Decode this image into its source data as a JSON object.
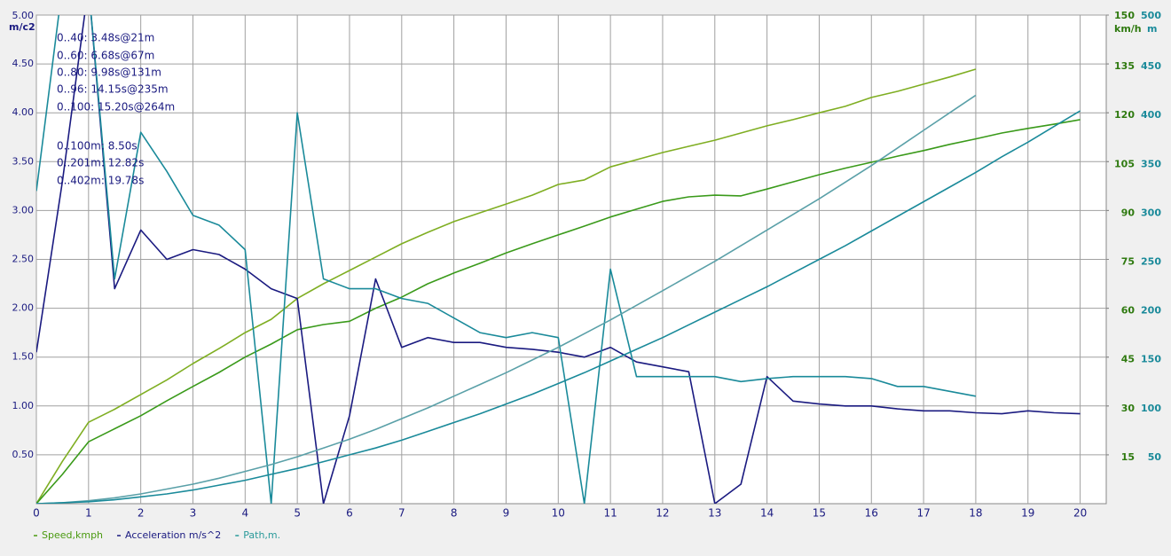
{
  "chart_data": {
    "type": "line",
    "y_label": "m/c2",
    "y2_label": "km/h",
    "y3_label": "m",
    "annotations": [
      "0..40: 3.48s@21m",
      "0..60: 6.68s@67m",
      "0..80: 9.98s@131m",
      "0..96: 14.15s@235m",
      "0..100: 15.20s@264m",
      "0..100m: 8.50s",
      "0..201m: 12.82s",
      "0..402m: 19.78s"
    ],
    "x": [
      0,
      0.5,
      1,
      1.5,
      2,
      2.5,
      3,
      3.5,
      4,
      4.5,
      5,
      5.5,
      6,
      6.5,
      7,
      7.5,
      8,
      8.5,
      9,
      9.5,
      10,
      10.5,
      11,
      11.5,
      12,
      12.5,
      13,
      13.5,
      14,
      14.5,
      15,
      15.5,
      16,
      16.5,
      17,
      17.5,
      18,
      18.5,
      19,
      19.5,
      20,
      20.5
    ],
    "xlim": [
      0,
      20.5
    ],
    "xticks": [
      0,
      1,
      2,
      3,
      4,
      5,
      6,
      7,
      8,
      9,
      10,
      11,
      12,
      13,
      14,
      15,
      16,
      17,
      18,
      19,
      20
    ],
    "ylim": [
      0,
      5
    ],
    "yticks": [
      {
        "value": 0.5,
        "label": "0.50"
      },
      {
        "value": 1,
        "label": "1.00"
      },
      {
        "value": 1.5,
        "label": "1.50"
      },
      {
        "value": 2,
        "label": "2.00"
      },
      {
        "value": 2.5,
        "label": "2.50"
      },
      {
        "value": 3,
        "label": "3.00"
      },
      {
        "value": 3.5,
        "label": "3.50"
      },
      {
        "value": 4,
        "label": "4.00"
      },
      {
        "value": 4.5,
        "label": "4.50"
      },
      {
        "value": 5,
        "label": "5.00"
      }
    ],
    "y2lim": [
      0,
      150
    ],
    "y2ticks": [
      15,
      30,
      45,
      60,
      75,
      90,
      105,
      120,
      135,
      150
    ],
    "y3lim": [
      0,
      500
    ],
    "y3ticks": [
      50,
      100,
      150,
      200,
      250,
      300,
      350,
      400,
      450,
      500
    ],
    "grid": true,
    "series": [
      {
        "name": "Speed,kmph",
        "color": "#4a9a10",
        "axis": "y2",
        "runs": [
          {
            "color": "#7fae22",
            "values": [
              0,
              13,
              25,
              29,
              33.5,
              38,
              43,
              47.6,
              52.5,
              56.6,
              63,
              67.5,
              71.6,
              75.7,
              79.8,
              83.3,
              86.6,
              89.3,
              92,
              94.7,
              98,
              99.4,
              103.4,
              105.6,
              107.8,
              109.7,
              111.6,
              113.8,
              116,
              117.9,
              120,
              122,
              124.7,
              126.6,
              128.8,
              131,
              133.4,
              null,
              null,
              null,
              null,
              null
            ]
          },
          {
            "color": "#3a9a1a",
            "values": [
              0,
              9,
              19,
              23,
              27,
              31.6,
              36,
              40.3,
              45,
              49,
              53.4,
              55,
              56,
              60,
              63.4,
              67.5,
              70.8,
              73.8,
              77,
              79.8,
              82.5,
              85.2,
              88,
              90.4,
              92.8,
              94.2,
              94.7,
              94.5,
              96.6,
              98.8,
              101,
              103,
              104.8,
              106.7,
              108.4,
              110.3,
              112,
              113.8,
              115.2,
              116.5,
              117.9,
              null
            ]
          }
        ]
      },
      {
        "name": "Acceleration m/s^2",
        "color": "#1a1a80",
        "axis": "y",
        "runs": [
          {
            "color": "#1a1a80",
            "values": [
              1.55,
              3.3,
              5.3,
              2.2,
              2.8,
              2.5,
              2.6,
              2.55,
              2.4,
              2.2,
              2.1,
              0,
              0.9,
              2.3,
              1.6,
              1.7,
              1.65,
              1.65,
              1.6,
              1.58,
              1.55,
              1.5,
              1.6,
              1.45,
              1.4,
              1.35,
              0,
              0.2,
              1.3,
              1.05,
              1.02,
              1,
              1,
              0.97,
              0.95,
              0.95,
              0.93,
              0.92,
              0.95,
              0.93,
              0.92,
              null
            ]
          },
          {
            "color": "#1a8a9a",
            "values": [
              3.2,
              5.3,
              5.3,
              2.3,
              3.8,
              3.4,
              2.95,
              2.85,
              2.6,
              0,
              4,
              2.3,
              2.2,
              2.2,
              2.1,
              2.05,
              1.9,
              1.75,
              1.7,
              1.75,
              1.7,
              0,
              2.4,
              1.3,
              1.3,
              1.3,
              1.3,
              1.25,
              1.28,
              1.3,
              1.3,
              1.3,
              1.28,
              1.2,
              1.2,
              1.15,
              1.1,
              null,
              null,
              null,
              null,
              null
            ]
          }
        ]
      },
      {
        "name": "Path,m.",
        "color": "#2a9a9a",
        "axis": "y3",
        "runs": [
          {
            "color": "#5aa0a8",
            "values": [
              0,
              1,
              3,
              6,
              10,
              15,
              20,
              26,
              33,
              40,
              48,
              57,
              66,
              76,
              87,
              98,
              110,
              122,
              134,
              147,
              160,
              174,
              188,
              203,
              218,
              233,
              248,
              264,
              280,
              296,
              312,
              329,
              346,
              364,
              382,
              400,
              418,
              null,
              null,
              null,
              null,
              null
            ]
          },
          {
            "color": "#1a8a9a",
            "values": [
              0,
              1,
              2,
              4,
              7,
              10,
              14,
              19,
              24,
              30,
              36,
              43,
              50,
              57,
              65,
              74,
              83,
              92,
              102,
              112,
              123,
              134,
              146,
              158,
              170,
              183,
              196,
              209,
              222,
              236,
              250,
              264,
              279,
              294,
              309,
              324,
              339,
              355,
              370,
              386,
              402,
              null
            ]
          }
        ]
      }
    ]
  }
}
